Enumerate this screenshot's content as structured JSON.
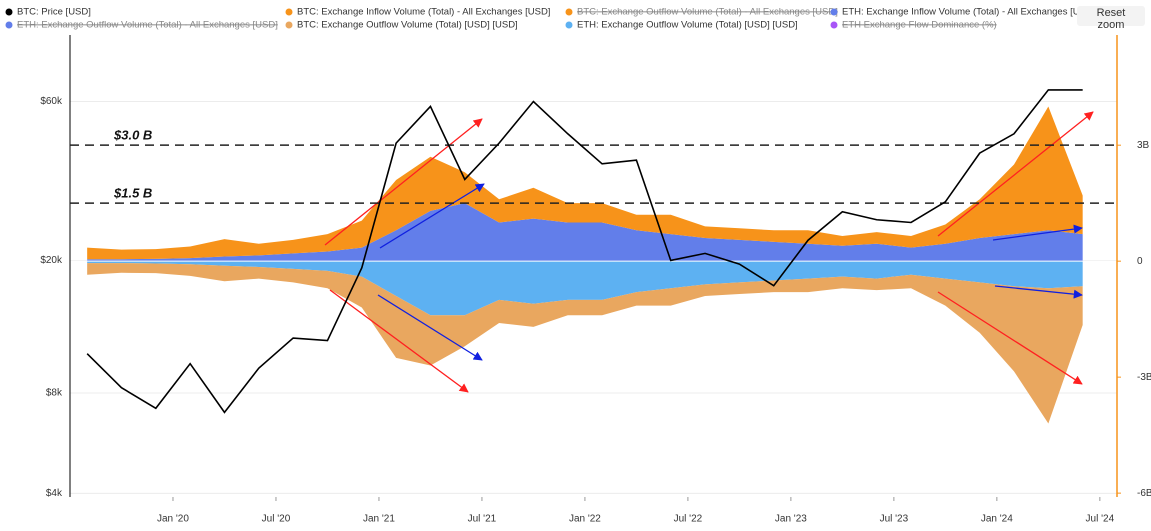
{
  "chart_data": {
    "type": "area",
    "reset_button": "Reset zoom",
    "x": [
      "2019-08",
      "2019-10",
      "2019-12",
      "2020-02",
      "2020-04",
      "2020-06",
      "2020-08",
      "2020-10",
      "2020-12",
      "2021-02",
      "2021-04",
      "2021-06",
      "2021-08",
      "2021-10",
      "2021-12",
      "2022-02",
      "2022-04",
      "2022-06",
      "2022-08",
      "2022-10",
      "2022-12",
      "2023-02",
      "2023-04",
      "2023-06",
      "2023-08",
      "2023-10",
      "2023-12",
      "2024-02",
      "2024-04",
      "2024-06"
    ],
    "xlim": [
      "2019-07",
      "2024-08"
    ],
    "xticks": [
      {
        "value": "2020-01",
        "label": "Jan '20"
      },
      {
        "value": "2020-07",
        "label": "Jul '20"
      },
      {
        "value": "2021-01",
        "label": "Jan '21"
      },
      {
        "value": "2021-07",
        "label": "Jul '21"
      },
      {
        "value": "2022-01",
        "label": "Jan '22"
      },
      {
        "value": "2022-07",
        "label": "Jul '22"
      },
      {
        "value": "2023-01",
        "label": "Jan '23"
      },
      {
        "value": "2023-07",
        "label": "Jul '23"
      },
      {
        "value": "2024-01",
        "label": "Jan '24"
      },
      {
        "value": "2024-07",
        "label": "Jul '24"
      }
    ],
    "ylim": [
      3900,
      95000
    ],
    "log_y": true,
    "yticks": [
      {
        "value": 4000,
        "label": "$4k"
      },
      {
        "value": 8000,
        "label": "$8k"
      },
      {
        "value": 20000,
        "label": "$20k"
      },
      {
        "value": 60000,
        "label": "$60k"
      }
    ],
    "y2lim": [
      -6100000000,
      5850000000
    ],
    "y2ticks": [
      {
        "value": -6000000000,
        "label": "-6B"
      },
      {
        "value": -3000000000,
        "label": "-3B"
      },
      0,
      {
        "value": 3000000000,
        "label": "3B"
      }
    ],
    "grid": true,
    "annotations": [
      {
        "value": 3000000000,
        "label": "$3.0 B"
      },
      {
        "value": 1500000000,
        "label": "$1.5 B"
      }
    ],
    "series": [
      {
        "name": "BTC: Price [USD]",
        "color": "#000000",
        "kind": "line",
        "values": [
          10500,
          8300,
          7200,
          9800,
          7000,
          9500,
          11700,
          11500,
          19000,
          45000,
          58000,
          35000,
          45000,
          60000,
          48000,
          39000,
          40000,
          20000,
          21000,
          19500,
          16800,
          23000,
          28000,
          26500,
          26000,
          30000,
          42000,
          48000,
          65000,
          65000
        ]
      },
      {
        "name": "BTC: Exchange Inflow Volume (Total) - All Exchanges [USD]",
        "color": "#f7931a",
        "kind": "area",
        "axis": "y2",
        "stack": "in",
        "values": [
          300000000,
          250000000,
          250000000,
          300000000,
          450000000,
          300000000,
          350000000,
          450000000,
          700000000,
          1300000000,
          1400000000,
          800000000,
          600000000,
          800000000,
          500000000,
          500000000,
          400000000,
          500000000,
          300000000,
          300000000,
          300000000,
          350000000,
          250000000,
          300000000,
          300000000,
          500000000,
          1000000000,
          1800000000,
          3200000000,
          1000000000
        ]
      },
      {
        "name": "BTC: Exchange Outflow Volume (Total) - All Exchanges [USD]",
        "color": "#f7931a",
        "hidden": true
      },
      {
        "name": "ETH: Exchange Inflow Volume (Total) - All Exchanges [USD]",
        "color": "#627eea",
        "kind": "area",
        "axis": "y2",
        "stack": "in",
        "base": true,
        "values": [
          50000000,
          50000000,
          60000000,
          80000000,
          120000000,
          150000000,
          200000000,
          250000000,
          350000000,
          800000000,
          1300000000,
          1500000000,
          1000000000,
          1100000000,
          1000000000,
          1000000000,
          800000000,
          700000000,
          600000000,
          550000000,
          500000000,
          450000000,
          400000000,
          450000000,
          350000000,
          450000000,
          600000000,
          700000000,
          800000000,
          700000000
        ]
      },
      {
        "name": "ETH: Exchange Outflow Volume (Total) - All Exchanges [USD]",
        "color": "#627eea",
        "hidden": true
      },
      {
        "name": "BTC: Exchange Outflow Volume (Total) [USD] [USD]",
        "color": "#e9a75f",
        "kind": "area",
        "axis": "y2",
        "stack": "out",
        "values": [
          -300000000,
          -250000000,
          -250000000,
          -300000000,
          -400000000,
          -300000000,
          -350000000,
          -450000000,
          -800000000,
          -1600000000,
          -1300000000,
          -800000000,
          -600000000,
          -600000000,
          -400000000,
          -400000000,
          -350000000,
          -450000000,
          -300000000,
          -300000000,
          -300000000,
          -350000000,
          -300000000,
          -300000000,
          -350000000,
          -700000000,
          -1300000000,
          -2200000000,
          -3500000000,
          -1000000000
        ]
      },
      {
        "name": "ETH: Exchange Outflow Volume (Total) [USD] [USD]",
        "color": "#5db1f2",
        "kind": "area",
        "axis": "y2",
        "stack": "out",
        "base": true,
        "values": [
          -50000000,
          -50000000,
          -60000000,
          -80000000,
          -120000000,
          -150000000,
          -200000000,
          -250000000,
          -400000000,
          -900000000,
          -1400000000,
          -1400000000,
          -1000000000,
          -1100000000,
          -1000000000,
          -1000000000,
          -800000000,
          -700000000,
          -600000000,
          -550000000,
          -500000000,
          -450000000,
          -400000000,
          -450000000,
          -350000000,
          -450000000,
          -550000000,
          -650000000,
          -700000000,
          -650000000
        ]
      },
      {
        "name": "ETH Exchange Flow Dominance (%)",
        "color": "#a855f7",
        "hidden": true
      }
    ]
  }
}
